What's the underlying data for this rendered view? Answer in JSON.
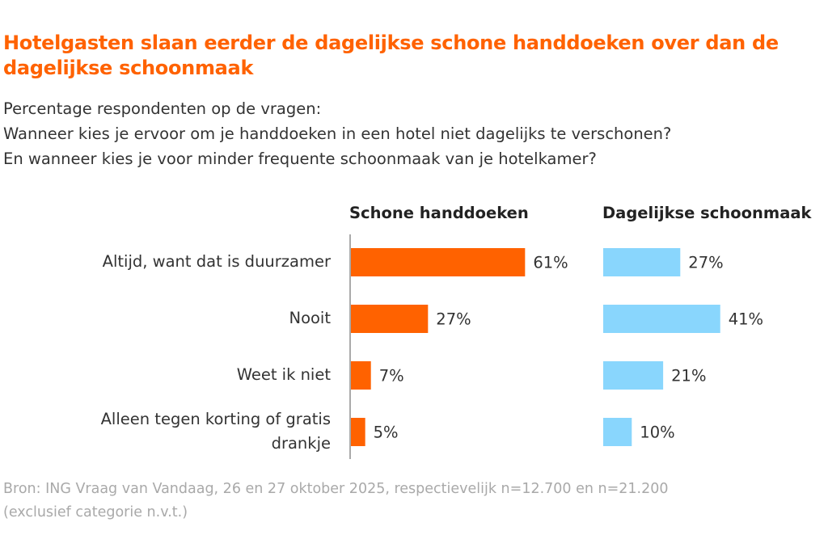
{
  "chart_data": {
    "type": "bar",
    "orientation": "horizontal",
    "title": "Hotelgasten slaan eerder de dagelijkse schone handdoeken over dan de dagelijkse schoonmaak",
    "subtitle": [
      "Percentage respondenten op de vragen:",
      "Wanneer kies je ervoor om je handdoeken in een hotel niet dagelijks te verschonen?",
      "En wanneer kies je voor minder frequente schoonmaak van je hotelkamer?"
    ],
    "categories": [
      "Altijd, want dat is duurzamer",
      "Nooit",
      "Weet ik niet",
      "Alleen tegen korting of gratis drankje"
    ],
    "series": [
      {
        "name": "Schone handdoeken",
        "values": [
          61,
          27,
          7,
          5
        ],
        "color": "#FF6200"
      },
      {
        "name": "Dagelijkse schoonmaak",
        "values": [
          27,
          41,
          21,
          10
        ],
        "color": "#89D6FD"
      }
    ],
    "unit": "%",
    "grid": false,
    "source": [
      "Bron: ING Vraag van Vandaag,  26 en 27 oktober 2025, respectievelijk n=12.700 en n=21.200",
      "(exclusief categorie n.v.t.)"
    ]
  }
}
